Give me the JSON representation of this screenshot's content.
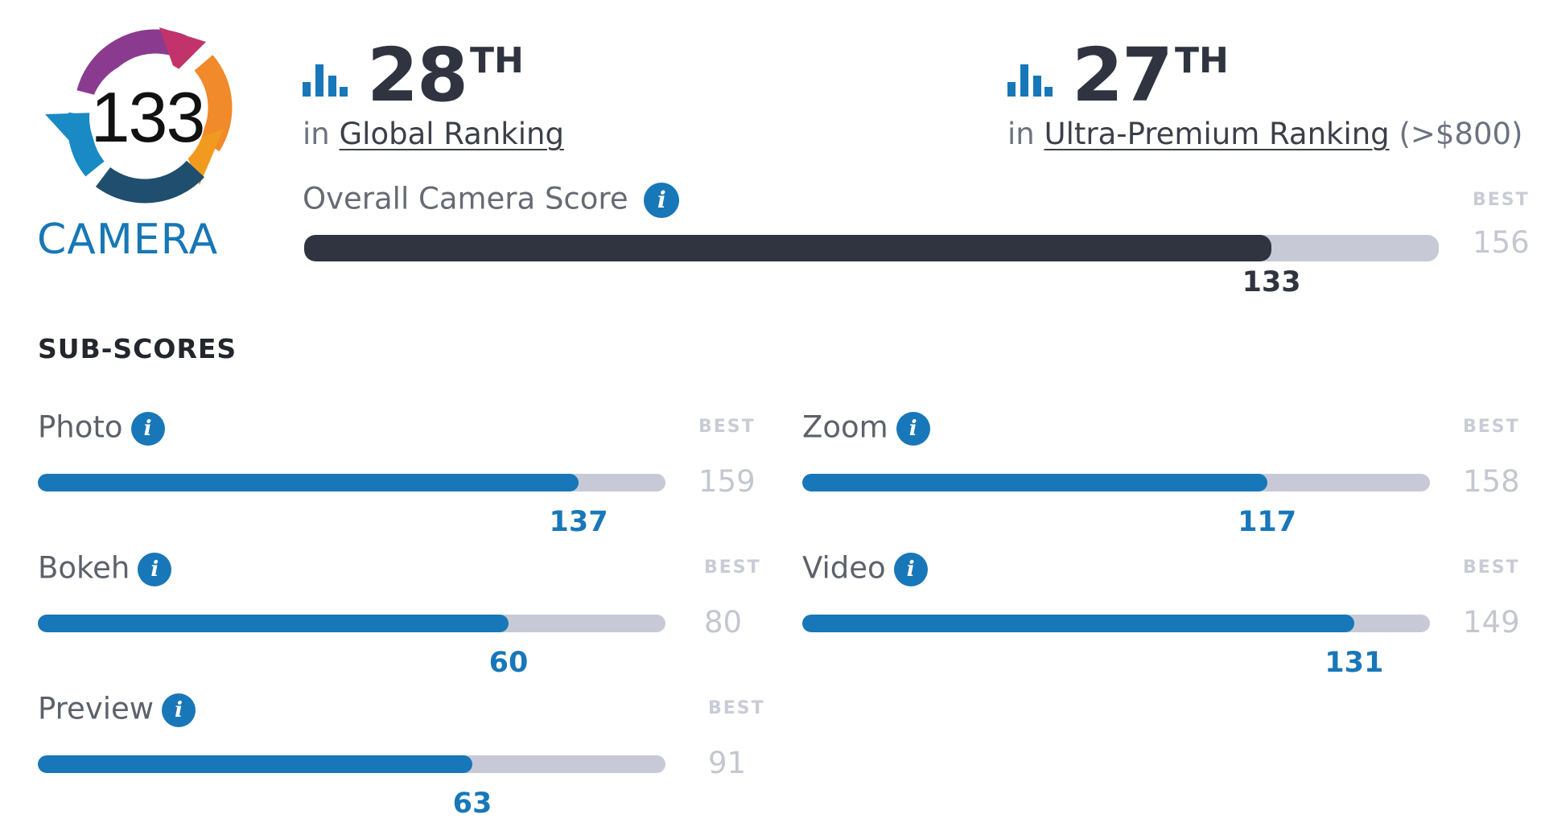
{
  "badge": {
    "score": "133",
    "label": "CAMERA"
  },
  "rankings": [
    {
      "number": "28",
      "suffix": "TH",
      "prefix": "in",
      "link": "Global Ranking",
      "extra": ""
    },
    {
      "number": "27",
      "suffix": "TH",
      "prefix": "in",
      "link": "Ultra-Premium Ranking",
      "extra": "(>$800)"
    }
  ],
  "overall": {
    "label": "Overall Camera Score",
    "score": 133,
    "best": 156,
    "best_label": "BEST",
    "score_text": "133",
    "best_text": "156"
  },
  "subscores_heading": "SUB-SCORES",
  "subscores": [
    {
      "name": "Photo",
      "score": 137,
      "best": 159,
      "score_text": "137",
      "best_text": "159",
      "best_label": "BEST"
    },
    {
      "name": "Zoom",
      "score": 117,
      "best": 158,
      "score_text": "117",
      "best_text": "158",
      "best_label": "BEST"
    },
    {
      "name": "Bokeh",
      "score": 60,
      "best": 80,
      "score_text": "60",
      "best_text": "80",
      "best_label": "BEST"
    },
    {
      "name": "Video",
      "score": 131,
      "best": 149,
      "score_text": "131",
      "best_text": "149",
      "best_label": "BEST"
    },
    {
      "name": "Preview",
      "score": 63,
      "best": 91,
      "score_text": "63",
      "best_text": "91",
      "best_label": "BEST"
    }
  ],
  "icons": {
    "info": "info-icon",
    "ranking": "bar-chart-icon"
  },
  "colors": {
    "accent": "#1877b8",
    "dark_bar": "#2f3440",
    "track": "#c7cad6",
    "best_text": "#c4c7d0"
  }
}
